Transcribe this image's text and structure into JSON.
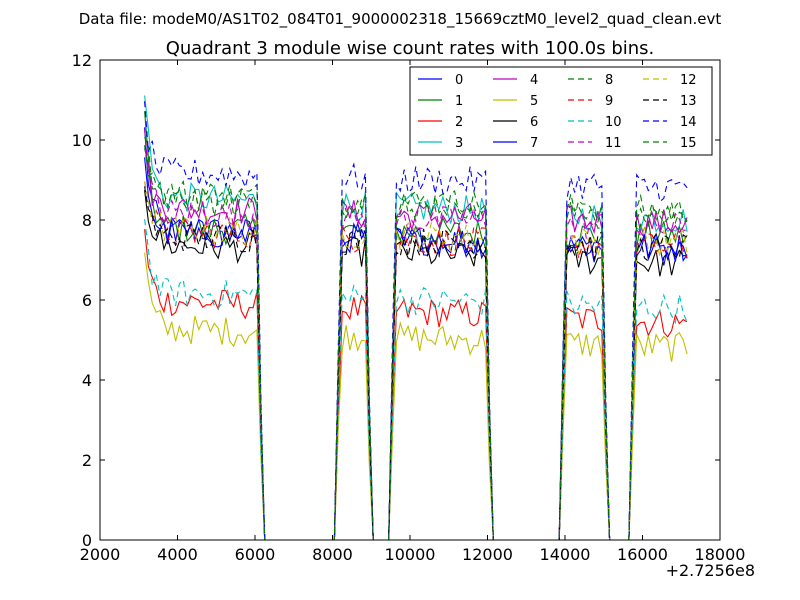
{
  "figure": {
    "suptitle": "Data file: modeM0/AS1T02_084T01_9000002318_15669cztM0_level2_quad_clean.evt"
  },
  "chart_data": {
    "type": "line",
    "title": "Quadrant 3 module wise count rates with 100.0s bins.",
    "xlabel": "",
    "ylabel": "",
    "x_offset_label": "+2.7256e8",
    "xlim": [
      2000,
      18000
    ],
    "ylim": [
      0,
      12
    ],
    "xticks": [
      2000,
      4000,
      6000,
      8000,
      10000,
      12000,
      14000,
      16000,
      18000
    ],
    "yticks": [
      0,
      2,
      4,
      6,
      8,
      10,
      12
    ],
    "xtick_labels": [
      "2000",
      "4000",
      "6000",
      "8000",
      "10000",
      "12000",
      "14000",
      "16000",
      "18000"
    ],
    "ytick_labels": [
      "0",
      "2",
      "4",
      "6",
      "8",
      "10",
      "12"
    ],
    "grid": false,
    "legend_position": "top-right",
    "good_time_intervals": [
      [
        3150,
        6150
      ],
      [
        8100,
        9000
      ],
      [
        9500,
        12050
      ],
      [
        13900,
        15050
      ],
      [
        15700,
        17200
      ]
    ],
    "x_start": 3150,
    "x_step": 100,
    "x_end": 17200,
    "series": [
      {
        "name": "0",
        "color": "#0000ff",
        "dashed": false,
        "start": 10.2,
        "level": 7.8,
        "tail": 7.2
      },
      {
        "name": "1",
        "color": "#008000",
        "dashed": false,
        "start": 10.5,
        "level": 7.8,
        "tail": 7.6
      },
      {
        "name": "2",
        "color": "#ff0000",
        "dashed": false,
        "start": 7.6,
        "level": 6.0,
        "tail": 5.4
      },
      {
        "name": "3",
        "color": "#00bfbf",
        "dashed": false,
        "start": 11.4,
        "level": 8.6,
        "tail": 8.0
      },
      {
        "name": "4",
        "color": "#bf00bf",
        "dashed": false,
        "start": 9.8,
        "level": 8.3,
        "tail": 7.9
      },
      {
        "name": "5",
        "color": "#bfbf00",
        "dashed": false,
        "start": 7.2,
        "level": 5.3,
        "tail": 4.8
      },
      {
        "name": "6",
        "color": "#000000",
        "dashed": false,
        "start": 9.0,
        "level": 7.4,
        "tail": 6.9
      },
      {
        "name": "7",
        "color": "#0000ff",
        "dashed": false,
        "start": 9.7,
        "level": 7.7,
        "tail": 7.3
      },
      {
        "name": "8",
        "color": "#008000",
        "dashed": true,
        "start": 10.4,
        "level": 8.7,
        "tail": 8.2
      },
      {
        "name": "9",
        "color": "#ff0000",
        "dashed": true,
        "start": 9.3,
        "level": 7.7,
        "tail": 7.3
      },
      {
        "name": "10",
        "color": "#00bfbf",
        "dashed": true,
        "start": 8.1,
        "level": 6.2,
        "tail": 5.8
      },
      {
        "name": "11",
        "color": "#bf00bf",
        "dashed": true,
        "start": 10.0,
        "level": 8.2,
        "tail": 7.8
      },
      {
        "name": "12",
        "color": "#bfbf00",
        "dashed": true,
        "start": 9.2,
        "level": 7.8,
        "tail": 7.4
      },
      {
        "name": "13",
        "color": "#000000",
        "dashed": true,
        "start": 8.9,
        "level": 7.6,
        "tail": 7.3
      },
      {
        "name": "14",
        "color": "#0000ff",
        "dashed": true,
        "start": 10.8,
        "level": 9.2,
        "tail": 8.8
      },
      {
        "name": "15",
        "color": "#008000",
        "dashed": true,
        "start": 9.9,
        "level": 8.5,
        "tail": 8.1
      }
    ]
  }
}
